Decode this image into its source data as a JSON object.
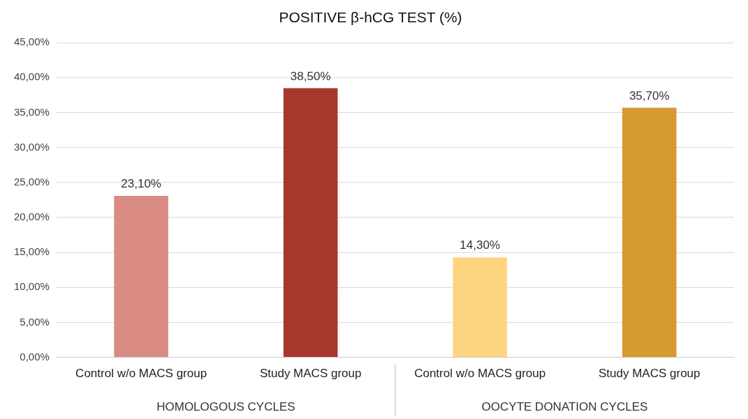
{
  "chart_data": {
    "type": "bar",
    "title": "POSITIVE β-hCG TEST (%)",
    "categories": [
      "Control w/o MACS group",
      "Study MACS group",
      "Control w/o MACS group",
      "Study MACS group"
    ],
    "values": [
      23.1,
      38.5,
      14.3,
      35.7
    ],
    "colors": [
      "#d98b84",
      "#a8372d",
      "#fdd580",
      "#d69a33"
    ],
    "value_labels": [
      "23,10%",
      "38,50%",
      "14,30%",
      "35,70%"
    ],
    "ylim": [
      0,
      45
    ],
    "yticks": [
      {
        "value": 0,
        "label": "0,00%"
      },
      {
        "value": 5,
        "label": "5,00%"
      },
      {
        "value": 10,
        "label": "10,00%"
      },
      {
        "value": 15,
        "label": "15,00%"
      },
      {
        "value": 20,
        "label": "20,00%"
      },
      {
        "value": 25,
        "label": "25,00%"
      },
      {
        "value": 30,
        "label": "30,00%"
      },
      {
        "value": 35,
        "label": "35,00%"
      },
      {
        "value": 40,
        "label": "40,00%"
      },
      {
        "value": 45,
        "label": "45,00%"
      }
    ],
    "grid": "y",
    "legend": false,
    "annotations": [
      "HOMOLOGOUS CYCLES",
      "OOCYTE DONATION CYCLES"
    ]
  }
}
